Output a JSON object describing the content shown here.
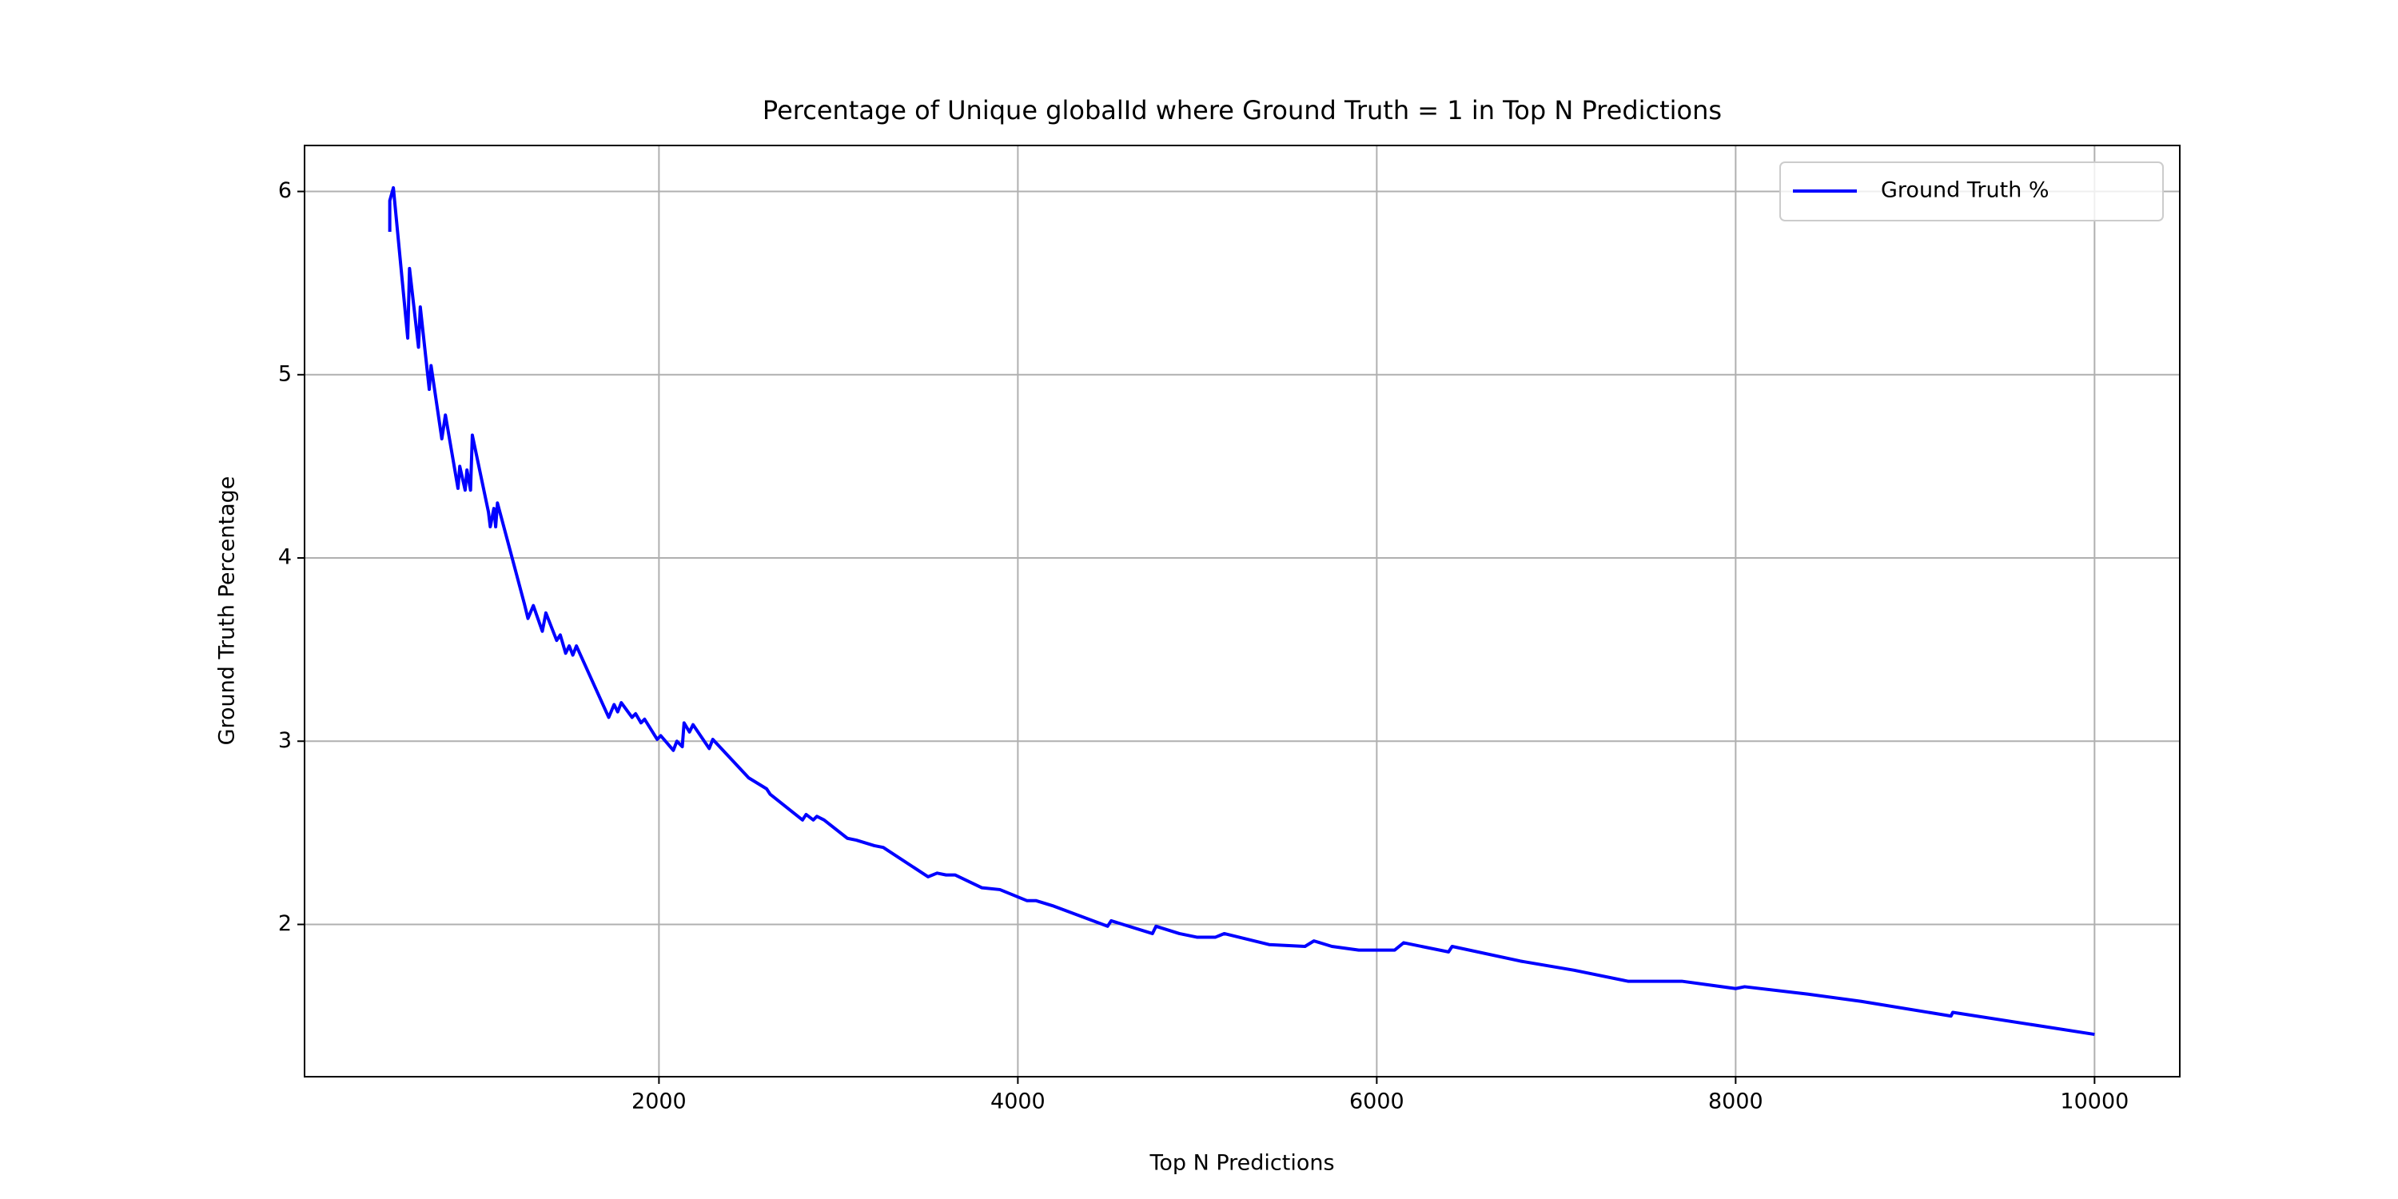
{
  "chart_data": {
    "type": "line",
    "title": "Percentage of Unique globalId where Ground Truth = 1 in Top N Predictions",
    "x_label": "Top N Predictions",
    "y_label": "Ground Truth Percentage",
    "x": [
      500,
      500,
      520,
      600,
      610,
      660,
      670,
      720,
      730,
      790,
      810,
      880,
      890,
      920,
      930,
      950,
      960,
      1050,
      1060,
      1080,
      1090,
      1100,
      1250,
      1270,
      1300,
      1350,
      1370,
      1430,
      1450,
      1480,
      1500,
      1520,
      1540,
      1720,
      1750,
      1770,
      1790,
      1850,
      1870,
      1900,
      1920,
      1990,
      2010,
      2080,
      2100,
      2130,
      2140,
      2170,
      2190,
      2280,
      2300,
      2500,
      2550,
      2600,
      2620,
      2800,
      2820,
      2860,
      2880,
      2920,
      3050,
      3100,
      3200,
      3250,
      3500,
      3550,
      3600,
      3650,
      3800,
      3900,
      4050,
      4100,
      4200,
      4500,
      4520,
      4750,
      4770,
      4900,
      5000,
      5100,
      5150,
      5400,
      5600,
      5650,
      5750,
      5900,
      6000,
      6100,
      6150,
      6400,
      6420,
      6800,
      7100,
      7400,
      7600,
      7700,
      8000,
      8050,
      8400,
      8700,
      9200,
      9210,
      10000
    ],
    "series": [
      {
        "name": "Ground Truth %",
        "color": "#0000ff",
        "values": [
          5.78,
          5.95,
          6.02,
          5.2,
          5.58,
          5.15,
          5.37,
          4.92,
          5.05,
          4.65,
          4.78,
          4.38,
          4.5,
          4.37,
          4.48,
          4.37,
          4.67,
          4.25,
          4.17,
          4.27,
          4.17,
          4.3,
          3.75,
          3.67,
          3.74,
          3.6,
          3.7,
          3.55,
          3.58,
          3.48,
          3.52,
          3.47,
          3.52,
          3.13,
          3.2,
          3.16,
          3.21,
          3.13,
          3.15,
          3.1,
          3.12,
          3.01,
          3.03,
          2.95,
          3.0,
          2.97,
          3.1,
          3.05,
          3.09,
          2.96,
          3.01,
          2.8,
          2.77,
          2.74,
          2.71,
          2.57,
          2.6,
          2.57,
          2.59,
          2.57,
          2.47,
          2.46,
          2.43,
          2.42,
          2.26,
          2.28,
          2.27,
          2.27,
          2.2,
          2.19,
          2.13,
          2.13,
          2.1,
          1.99,
          2.02,
          1.95,
          1.99,
          1.95,
          1.93,
          1.93,
          1.95,
          1.89,
          1.88,
          1.91,
          1.88,
          1.86,
          1.86,
          1.86,
          1.9,
          1.85,
          1.88,
          1.8,
          1.75,
          1.69,
          1.69,
          1.69,
          1.65,
          1.66,
          1.62,
          1.58,
          1.5,
          1.52,
          1.4
        ]
      }
    ],
    "xlim": [
      25,
      10475
    ],
    "ylim": [
      1.169,
      6.251
    ],
    "xticks": [
      2000,
      4000,
      6000,
      8000,
      10000
    ],
    "yticks": [
      2,
      3,
      4,
      5,
      6
    ],
    "grid": true,
    "legend": "upper right"
  }
}
